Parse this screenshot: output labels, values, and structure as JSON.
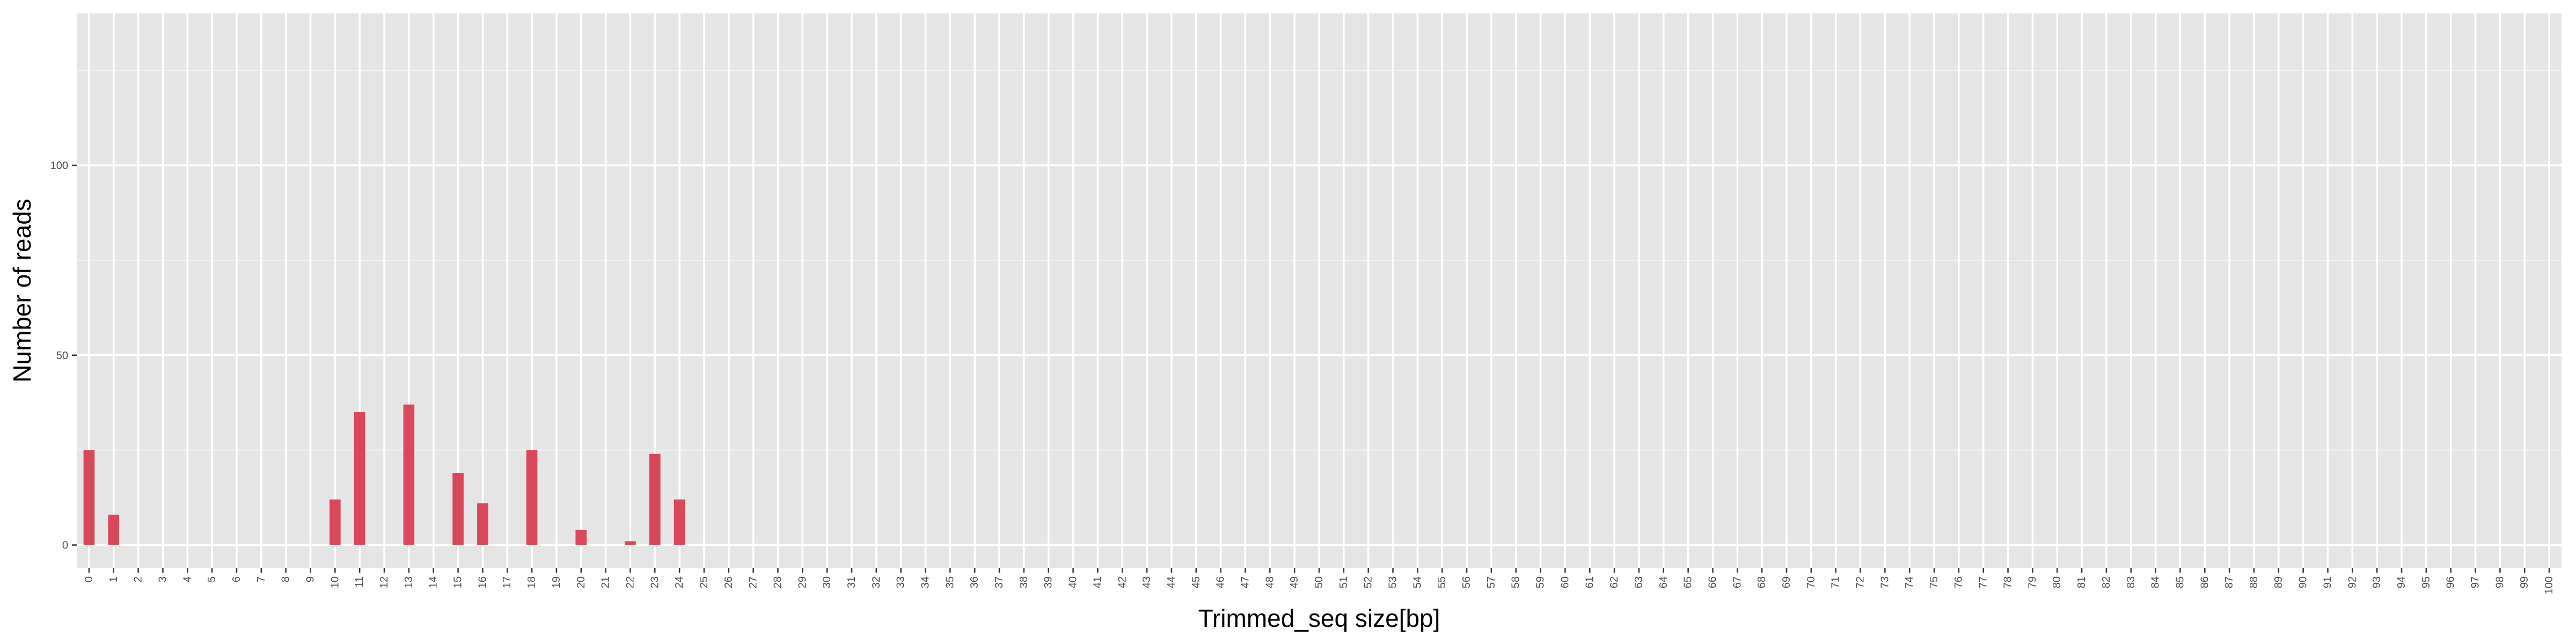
{
  "chart_data": {
    "type": "bar",
    "title": "",
    "xlabel": "Trimmed_seq size[bp]",
    "ylabel": "Number of reads",
    "ylim": [
      -6,
      140
    ],
    "yticks": [
      0,
      50,
      100
    ],
    "grid": true,
    "legend": "none",
    "categories": [
      "0",
      "1",
      "2",
      "3",
      "4",
      "5",
      "6",
      "7",
      "8",
      "9",
      "10",
      "11",
      "12",
      "13",
      "14",
      "15",
      "16",
      "17",
      "18",
      "19",
      "20",
      "21",
      "22",
      "23",
      "24",
      "25",
      "26",
      "27",
      "28",
      "29",
      "30",
      "31",
      "32",
      "33",
      "34",
      "35",
      "36",
      "37",
      "38",
      "39",
      "40",
      "41",
      "42",
      "43",
      "44",
      "45",
      "46",
      "47",
      "48",
      "49",
      "50",
      "51",
      "52",
      "53",
      "54",
      "55",
      "56",
      "57",
      "58",
      "59",
      "60",
      "61",
      "62",
      "63",
      "64",
      "65",
      "66",
      "67",
      "68",
      "69",
      "70",
      "71",
      "72",
      "73",
      "74",
      "75",
      "76",
      "77",
      "78",
      "79",
      "80",
      "81",
      "82",
      "83",
      "84",
      "85",
      "86",
      "87",
      "88",
      "89",
      "90",
      "91",
      "92",
      "93",
      "94",
      "95",
      "96",
      "97",
      "98",
      "99",
      "100"
    ],
    "values": [
      25,
      8,
      0,
      0,
      0,
      0,
      0,
      0,
      0,
      0,
      12,
      35,
      0,
      37,
      0,
      19,
      11,
      0,
      25,
      0,
      4,
      0,
      1,
      24,
      12,
      0,
      0,
      0,
      0,
      0,
      0,
      0,
      0,
      0,
      0,
      0,
      0,
      0,
      0,
      0,
      0,
      0,
      0,
      0,
      0,
      0,
      0,
      0,
      0,
      0,
      0,
      0,
      0,
      0,
      0,
      0,
      0,
      0,
      0,
      0,
      0,
      0,
      0,
      0,
      0,
      0,
      0,
      0,
      0,
      0,
      0,
      0,
      0,
      0,
      0,
      0,
      0,
      0,
      0,
      0,
      0,
      0,
      0,
      0,
      0,
      0,
      0,
      0,
      0,
      0,
      0,
      0,
      0,
      0,
      0,
      0,
      0,
      0,
      0,
      0,
      0
    ],
    "colors": {
      "bar": "#d9475a",
      "panel": "#e5e5e5",
      "grid_major": "#ffffff",
      "grid_minor": "#f2f2f2",
      "tick_label": "#4d4d4d",
      "tick_mark": "#333333"
    }
  }
}
